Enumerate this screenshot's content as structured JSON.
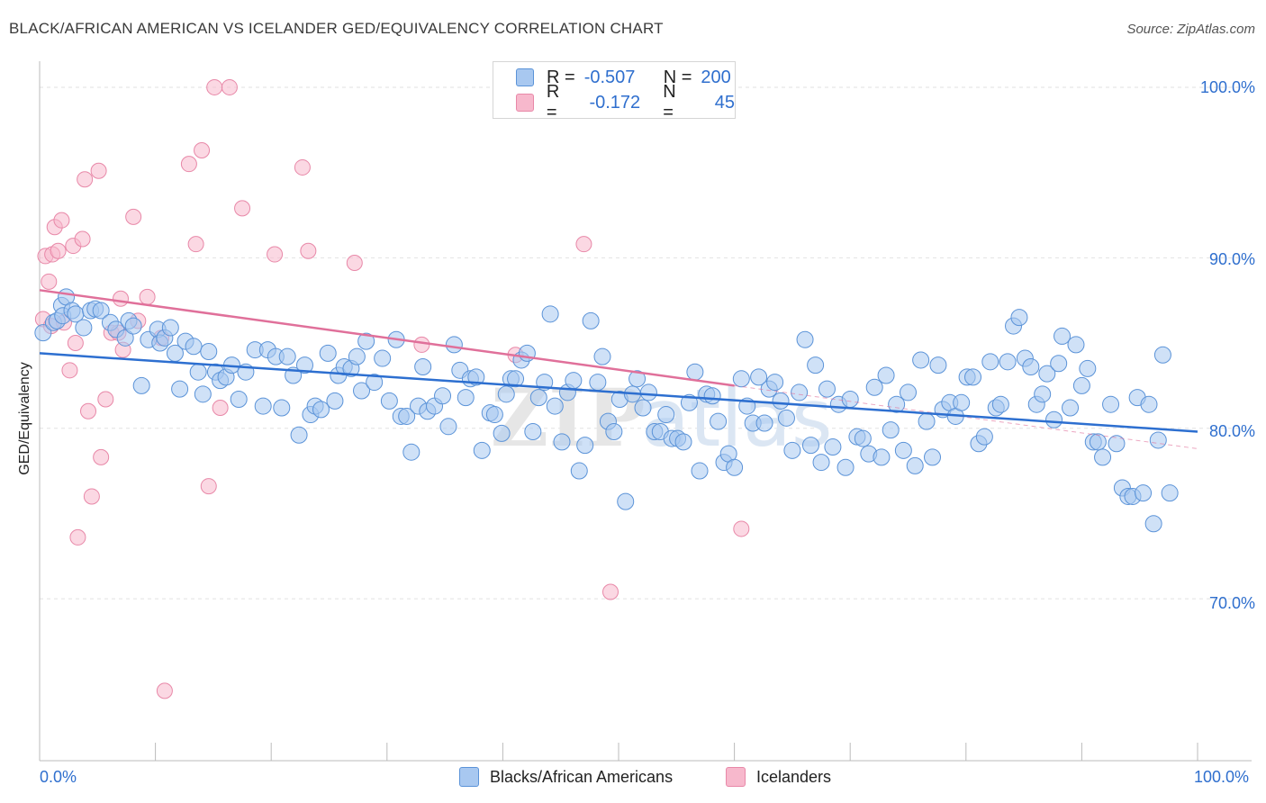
{
  "title": "BLACK/AFRICAN AMERICAN VS ICELANDER GED/EQUIVALENCY CORRELATION CHART",
  "source": "Source: ZipAtlas.com",
  "legend": {
    "rows": [
      {
        "r_label": "R =",
        "r_value": "-0.507",
        "n_label": "N =",
        "n_value": "200",
        "color": "#a8c8f0"
      },
      {
        "r_label": "R =",
        "r_value": "-0.172",
        "n_label": "N =",
        "n_value": "45",
        "color": "#f7b8cc"
      }
    ]
  },
  "bottom_legend": {
    "blue": "Blacks/African Americans",
    "pink": "Icelanders"
  },
  "axis": {
    "ylabel": "GED/Equivalency",
    "x_min_label": "0.0%",
    "x_max_label": "100.0%",
    "y_ticks": [
      "100.0%",
      "90.0%",
      "80.0%",
      "70.0%"
    ]
  },
  "colors": {
    "blue_fill": "#a8c8f0",
    "blue_stroke": "#5b93d8",
    "blue_line": "#2d6fd0",
    "pink_fill": "#f7b8cc",
    "pink_stroke": "#e888a8",
    "pink_line": "#e0709a",
    "tick_text": "#2f6fce",
    "grid": "#e2e2e2"
  },
  "chart_data": {
    "type": "scatter",
    "xlim": [
      0,
      100
    ],
    "ylim": [
      60.5,
      101
    ],
    "grid": true,
    "legend_placement": "top-center",
    "series": [
      {
        "name": "Blacks/African Americans",
        "trend": {
          "x": [
            0,
            100
          ],
          "y": [
            84.4,
            79.8
          ]
        },
        "points": [
          [
            0.3,
            85.6
          ],
          [
            1.2,
            86.2
          ],
          [
            1.5,
            86.3
          ],
          [
            1.9,
            87.2
          ],
          [
            2.0,
            86.6
          ],
          [
            2.3,
            87.7
          ],
          [
            2.8,
            86.9
          ],
          [
            3.1,
            86.7
          ],
          [
            3.8,
            85.9
          ],
          [
            4.4,
            86.9
          ],
          [
            4.8,
            87.0
          ],
          [
            5.3,
            86.9
          ],
          [
            6.1,
            86.2
          ],
          [
            6.6,
            85.8
          ],
          [
            7.4,
            85.3
          ],
          [
            7.7,
            86.3
          ],
          [
            8.1,
            86.0
          ],
          [
            8.8,
            82.5
          ],
          [
            9.4,
            85.2
          ],
          [
            10.2,
            85.8
          ],
          [
            10.4,
            85.0
          ],
          [
            10.8,
            85.3
          ],
          [
            11.3,
            85.9
          ],
          [
            11.7,
            84.4
          ],
          [
            12.1,
            82.3
          ],
          [
            12.6,
            85.1
          ],
          [
            13.3,
            84.8
          ],
          [
            13.7,
            83.3
          ],
          [
            14.1,
            82.0
          ],
          [
            14.6,
            84.5
          ],
          [
            15.2,
            83.3
          ],
          [
            15.6,
            82.8
          ],
          [
            16.1,
            83.0
          ],
          [
            16.6,
            83.7
          ],
          [
            17.2,
            81.7
          ],
          [
            17.8,
            83.3
          ],
          [
            18.6,
            84.6
          ],
          [
            19.3,
            81.3
          ],
          [
            19.7,
            84.6
          ],
          [
            20.4,
            84.2
          ],
          [
            20.9,
            81.2
          ],
          [
            21.4,
            84.2
          ],
          [
            21.9,
            83.1
          ],
          [
            22.4,
            79.6
          ],
          [
            22.9,
            83.7
          ],
          [
            23.4,
            80.8
          ],
          [
            23.8,
            81.3
          ],
          [
            24.3,
            81.1
          ],
          [
            24.9,
            84.4
          ],
          [
            25.5,
            81.6
          ],
          [
            25.8,
            83.1
          ],
          [
            26.3,
            83.6
          ],
          [
            26.9,
            83.5
          ],
          [
            27.4,
            84.2
          ],
          [
            27.8,
            82.2
          ],
          [
            28.2,
            85.1
          ],
          [
            28.9,
            82.7
          ],
          [
            29.6,
            84.1
          ],
          [
            30.2,
            81.6
          ],
          [
            30.8,
            85.2
          ],
          [
            31.2,
            80.7
          ],
          [
            31.7,
            80.7
          ],
          [
            32.1,
            78.6
          ],
          [
            32.7,
            81.3
          ],
          [
            33.1,
            83.6
          ],
          [
            33.5,
            81.0
          ],
          [
            34.1,
            81.3
          ],
          [
            34.8,
            81.9
          ],
          [
            35.3,
            80.1
          ],
          [
            35.8,
            84.9
          ],
          [
            36.3,
            83.4
          ],
          [
            36.8,
            81.8
          ],
          [
            37.2,
            82.9
          ],
          [
            37.7,
            83.0
          ],
          [
            38.2,
            78.7
          ],
          [
            38.9,
            80.9
          ],
          [
            39.3,
            80.8
          ],
          [
            39.9,
            79.7
          ],
          [
            40.3,
            82.0
          ],
          [
            40.7,
            82.9
          ],
          [
            41.1,
            82.9
          ],
          [
            41.6,
            84.0
          ],
          [
            42.1,
            84.4
          ],
          [
            42.6,
            79.8
          ],
          [
            43.1,
            81.8
          ],
          [
            43.6,
            82.7
          ],
          [
            44.1,
            86.7
          ],
          [
            44.5,
            81.3
          ],
          [
            45.1,
            79.2
          ],
          [
            45.6,
            82.1
          ],
          [
            46.1,
            82.8
          ],
          [
            46.6,
            77.5
          ],
          [
            47.1,
            79.0
          ],
          [
            47.6,
            86.3
          ],
          [
            48.2,
            82.7
          ],
          [
            48.6,
            84.2
          ],
          [
            49.1,
            80.4
          ],
          [
            49.6,
            79.8
          ],
          [
            50.1,
            81.7
          ],
          [
            50.6,
            75.7
          ],
          [
            51.2,
            82.0
          ],
          [
            51.6,
            82.9
          ],
          [
            52.1,
            81.2
          ],
          [
            52.6,
            82.1
          ],
          [
            53.1,
            79.8
          ],
          [
            53.6,
            79.8
          ],
          [
            54.1,
            80.8
          ],
          [
            54.6,
            79.4
          ],
          [
            55.1,
            79.4
          ],
          [
            55.6,
            79.2
          ],
          [
            56.1,
            81.5
          ],
          [
            56.6,
            83.3
          ],
          [
            57.0,
            77.5
          ],
          [
            57.6,
            82.0
          ],
          [
            58.1,
            81.9
          ],
          [
            58.6,
            80.4
          ],
          [
            59.1,
            78.0
          ],
          [
            59.5,
            78.5
          ],
          [
            60.0,
            77.7
          ],
          [
            60.6,
            82.9
          ],
          [
            61.1,
            81.3
          ],
          [
            61.6,
            80.3
          ],
          [
            62.1,
            83.0
          ],
          [
            62.6,
            80.3
          ],
          [
            63.0,
            82.3
          ],
          [
            63.5,
            82.7
          ],
          [
            64.0,
            81.6
          ],
          [
            64.5,
            80.6
          ],
          [
            65.0,
            78.7
          ],
          [
            65.6,
            82.1
          ],
          [
            66.1,
            85.2
          ],
          [
            66.6,
            79.0
          ],
          [
            67.0,
            83.7
          ],
          [
            67.5,
            78.0
          ],
          [
            68.0,
            82.3
          ],
          [
            68.5,
            78.9
          ],
          [
            69.0,
            81.4
          ],
          [
            69.6,
            77.7
          ],
          [
            70.0,
            81.7
          ],
          [
            70.6,
            79.5
          ],
          [
            71.1,
            79.4
          ],
          [
            71.6,
            78.5
          ],
          [
            72.1,
            82.4
          ],
          [
            72.7,
            78.3
          ],
          [
            73.1,
            83.1
          ],
          [
            73.5,
            79.9
          ],
          [
            74.0,
            81.4
          ],
          [
            74.6,
            78.7
          ],
          [
            75.0,
            82.1
          ],
          [
            75.6,
            77.8
          ],
          [
            76.1,
            84.0
          ],
          [
            76.6,
            80.4
          ],
          [
            77.1,
            78.3
          ],
          [
            77.6,
            83.7
          ],
          [
            78.0,
            81.1
          ],
          [
            78.6,
            81.5
          ],
          [
            79.1,
            80.7
          ],
          [
            79.6,
            81.5
          ],
          [
            80.1,
            83.0
          ],
          [
            80.6,
            83.0
          ],
          [
            81.1,
            79.1
          ],
          [
            81.6,
            79.5
          ],
          [
            82.1,
            83.9
          ],
          [
            82.6,
            81.2
          ],
          [
            83.0,
            81.4
          ],
          [
            83.6,
            83.9
          ],
          [
            84.1,
            86.0
          ],
          [
            84.6,
            86.5
          ],
          [
            85.1,
            84.1
          ],
          [
            85.6,
            83.6
          ],
          [
            86.1,
            81.4
          ],
          [
            86.6,
            82.0
          ],
          [
            87.0,
            83.2
          ],
          [
            87.6,
            80.5
          ],
          [
            88.0,
            83.8
          ],
          [
            88.3,
            85.4
          ],
          [
            89.0,
            81.2
          ],
          [
            89.5,
            84.9
          ],
          [
            90.0,
            82.5
          ],
          [
            90.5,
            83.5
          ],
          [
            91.0,
            79.2
          ],
          [
            91.4,
            79.2
          ],
          [
            91.8,
            78.3
          ],
          [
            92.5,
            81.4
          ],
          [
            93.0,
            79.1
          ],
          [
            93.5,
            76.5
          ],
          [
            94.0,
            76.0
          ],
          [
            94.4,
            76.0
          ],
          [
            94.8,
            81.8
          ],
          [
            95.3,
            76.2
          ],
          [
            95.8,
            81.4
          ],
          [
            96.2,
            74.4
          ],
          [
            96.6,
            79.3
          ],
          [
            97.0,
            84.3
          ],
          [
            97.6,
            76.2
          ]
        ]
      },
      {
        "name": "Icelanders",
        "trend": {
          "x": [
            0,
            60
          ],
          "y": [
            88.1,
            82.5
          ]
        },
        "trend_dashed": {
          "x": [
            60,
            100
          ],
          "y": [
            82.5,
            78.8
          ]
        },
        "points": [
          [
            0.3,
            86.4
          ],
          [
            0.5,
            90.1
          ],
          [
            0.8,
            88.6
          ],
          [
            1.0,
            86.0
          ],
          [
            1.1,
            90.2
          ],
          [
            1.3,
            91.8
          ],
          [
            1.6,
            90.4
          ],
          [
            1.9,
            92.2
          ],
          [
            2.1,
            86.2
          ],
          [
            2.6,
            83.4
          ],
          [
            2.9,
            90.7
          ],
          [
            3.1,
            85.0
          ],
          [
            3.3,
            73.6
          ],
          [
            3.7,
            91.1
          ],
          [
            3.9,
            94.6
          ],
          [
            4.2,
            81.0
          ],
          [
            4.5,
            76.0
          ],
          [
            5.1,
            95.1
          ],
          [
            5.3,
            78.3
          ],
          [
            5.7,
            81.7
          ],
          [
            6.2,
            85.6
          ],
          [
            6.8,
            85.6
          ],
          [
            7.0,
            87.6
          ],
          [
            7.2,
            84.6
          ],
          [
            8.1,
            92.4
          ],
          [
            8.5,
            86.3
          ],
          [
            9.3,
            87.7
          ],
          [
            10.5,
            85.3
          ],
          [
            10.8,
            64.6
          ],
          [
            12.9,
            95.5
          ],
          [
            13.5,
            90.8
          ],
          [
            14.0,
            96.3
          ],
          [
            14.6,
            76.6
          ],
          [
            15.1,
            100.0
          ],
          [
            15.6,
            81.2
          ],
          [
            16.4,
            100.0
          ],
          [
            17.5,
            92.9
          ],
          [
            20.3,
            90.2
          ],
          [
            22.7,
            95.3
          ],
          [
            23.2,
            90.4
          ],
          [
            27.2,
            89.7
          ],
          [
            33.0,
            84.9
          ],
          [
            41.1,
            84.3
          ],
          [
            47.0,
            90.8
          ],
          [
            49.3,
            70.4
          ],
          [
            60.6,
            74.1
          ]
        ]
      }
    ]
  }
}
